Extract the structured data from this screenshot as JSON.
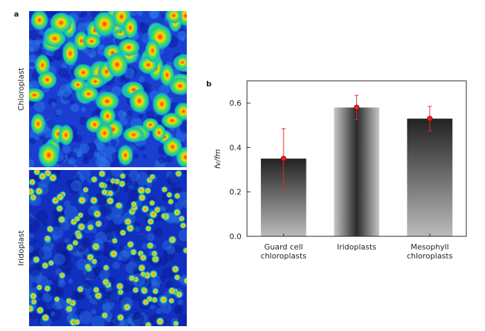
{
  "panel_a": {
    "label": "a",
    "images": [
      "Chloroplast",
      "Iridoplast"
    ]
  },
  "chart_data": {
    "type": "bar",
    "panel_label": "b",
    "ylabel": "fv/fm",
    "categories": [
      "Guard cell chloroplasts",
      "Iridoplasts",
      "Mesophyll chloroplasts"
    ],
    "values": [
      0.35,
      0.58,
      0.53
    ],
    "errors": [
      0.135,
      0.055,
      0.055
    ],
    "color": "#e8262a",
    "ylim": [
      0,
      0.7
    ],
    "yticks": [
      {
        "value": 0,
        "label": "0.0"
      },
      0.2,
      0.4,
      0.6
    ]
  }
}
